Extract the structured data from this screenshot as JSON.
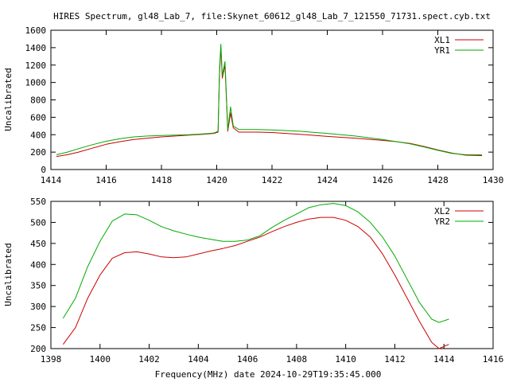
{
  "title": "HIRES Spectrum, gl48_Lab_7, file:Skynet_60612_gl48_Lab_7_121550_71731.spect.cyb.txt",
  "chart_data": [
    {
      "type": "line",
      "ylabel": "Uncalibrated",
      "xlabel": "",
      "xlim": [
        1414,
        1430
      ],
      "ylim": [
        0,
        1600
      ],
      "xticks": [
        "1414",
        "1416",
        "1418",
        "1420",
        "1422",
        "1424",
        "1426",
        "1428",
        "1430"
      ],
      "yticks": [
        "0",
        "200",
        "400",
        "600",
        "800",
        "1000",
        "1200",
        "1400",
        "1600"
      ],
      "legend_position": "top-right",
      "series": [
        {
          "name": "XL1",
          "color": "#cc0000",
          "points": [
            [
              1414.2,
              150
            ],
            [
              1414.6,
              170
            ],
            [
              1415.0,
              200
            ],
            [
              1415.5,
              245
            ],
            [
              1416.0,
              290
            ],
            [
              1416.5,
              320
            ],
            [
              1417.0,
              345
            ],
            [
              1417.5,
              360
            ],
            [
              1418.0,
              375
            ],
            [
              1418.5,
              385
            ],
            [
              1419.0,
              395
            ],
            [
              1419.5,
              405
            ],
            [
              1419.9,
              415
            ],
            [
              1420.05,
              430
            ],
            [
              1420.1,
              1100
            ],
            [
              1420.15,
              1400
            ],
            [
              1420.2,
              1050
            ],
            [
              1420.3,
              1200
            ],
            [
              1420.4,
              440
            ],
            [
              1420.5,
              650
            ],
            [
              1420.6,
              480
            ],
            [
              1420.8,
              430
            ],
            [
              1421.5,
              430
            ],
            [
              1422.0,
              425
            ],
            [
              1423.0,
              405
            ],
            [
              1424.0,
              380
            ],
            [
              1425.0,
              360
            ],
            [
              1426.0,
              335
            ],
            [
              1426.5,
              320
            ],
            [
              1427.0,
              300
            ],
            [
              1427.5,
              265
            ],
            [
              1428.0,
              225
            ],
            [
              1428.5,
              190
            ],
            [
              1429.0,
              165
            ],
            [
              1429.6,
              160
            ]
          ]
        },
        {
          "name": "YR1",
          "color": "#00aa00",
          "points": [
            [
              1414.2,
              170
            ],
            [
              1414.6,
              200
            ],
            [
              1415.0,
              240
            ],
            [
              1415.5,
              285
            ],
            [
              1416.0,
              325
            ],
            [
              1416.5,
              355
            ],
            [
              1417.0,
              375
            ],
            [
              1417.5,
              385
            ],
            [
              1418.0,
              390
            ],
            [
              1418.5,
              395
            ],
            [
              1419.0,
              400
            ],
            [
              1419.5,
              410
            ],
            [
              1419.9,
              420
            ],
            [
              1420.05,
              440
            ],
            [
              1420.1,
              1150
            ],
            [
              1420.15,
              1440
            ],
            [
              1420.2,
              1080
            ],
            [
              1420.3,
              1240
            ],
            [
              1420.4,
              460
            ],
            [
              1420.5,
              720
            ],
            [
              1420.6,
              500
            ],
            [
              1420.8,
              460
            ],
            [
              1421.5,
              460
            ],
            [
              1422.0,
              455
            ],
            [
              1423.0,
              440
            ],
            [
              1424.0,
              415
            ],
            [
              1425.0,
              385
            ],
            [
              1426.0,
              345
            ],
            [
              1426.5,
              320
            ],
            [
              1427.0,
              295
            ],
            [
              1427.5,
              260
            ],
            [
              1428.0,
              220
            ],
            [
              1428.5,
              185
            ],
            [
              1429.0,
              170
            ],
            [
              1429.6,
              170
            ]
          ]
        }
      ]
    },
    {
      "type": "line",
      "ylabel": "Uncalibrated",
      "xlabel": "Frequency(MHz) date 2024-10-29T19:35:45.000",
      "xlim": [
        1398,
        1416
      ],
      "ylim": [
        200,
        550
      ],
      "xticks": [
        "1398",
        "1400",
        "1402",
        "1404",
        "1406",
        "1408",
        "1410",
        "1412",
        "1414",
        "1416"
      ],
      "yticks": [
        "200",
        "250",
        "300",
        "350",
        "400",
        "450",
        "500",
        "550"
      ],
      "legend_position": "top-right",
      "series": [
        {
          "name": "XL2",
          "color": "#cc0000",
          "points": [
            [
              1398.5,
              210
            ],
            [
              1399.0,
              250
            ],
            [
              1399.5,
              320
            ],
            [
              1400.0,
              375
            ],
            [
              1400.5,
              415
            ],
            [
              1401.0,
              428
            ],
            [
              1401.5,
              430
            ],
            [
              1402.0,
              425
            ],
            [
              1402.5,
              418
            ],
            [
              1403.0,
              416
            ],
            [
              1403.5,
              418
            ],
            [
              1404.0,
              425
            ],
            [
              1404.5,
              432
            ],
            [
              1405.0,
              438
            ],
            [
              1405.5,
              445
            ],
            [
              1406.0,
              455
            ],
            [
              1406.5,
              465
            ],
            [
              1407.0,
              478
            ],
            [
              1407.5,
              490
            ],
            [
              1408.0,
              500
            ],
            [
              1408.5,
              508
            ],
            [
              1409.0,
              512
            ],
            [
              1409.5,
              512
            ],
            [
              1410.0,
              505
            ],
            [
              1410.5,
              490
            ],
            [
              1411.0,
              465
            ],
            [
              1411.5,
              425
            ],
            [
              1412.0,
              375
            ],
            [
              1412.5,
              320
            ],
            [
              1413.0,
              265
            ],
            [
              1413.5,
              215
            ],
            [
              1413.8,
              200
            ],
            [
              1414.2,
              210
            ]
          ]
        },
        {
          "name": "YR2",
          "color": "#00aa00",
          "points": [
            [
              1398.5,
              272
            ],
            [
              1399.0,
              320
            ],
            [
              1399.5,
              395
            ],
            [
              1400.0,
              455
            ],
            [
              1400.5,
              503
            ],
            [
              1401.0,
              520
            ],
            [
              1401.5,
              518
            ],
            [
              1402.0,
              505
            ],
            [
              1402.5,
              490
            ],
            [
              1403.0,
              480
            ],
            [
              1403.5,
              472
            ],
            [
              1404.0,
              465
            ],
            [
              1404.5,
              460
            ],
            [
              1405.0,
              455
            ],
            [
              1405.5,
              455
            ],
            [
              1406.0,
              458
            ],
            [
              1406.5,
              468
            ],
            [
              1407.0,
              488
            ],
            [
              1407.5,
              505
            ],
            [
              1408.0,
              520
            ],
            [
              1408.5,
              535
            ],
            [
              1409.0,
              542
            ],
            [
              1409.5,
              545
            ],
            [
              1410.0,
              540
            ],
            [
              1410.5,
              525
            ],
            [
              1411.0,
              500
            ],
            [
              1411.5,
              465
            ],
            [
              1412.0,
              420
            ],
            [
              1412.5,
              365
            ],
            [
              1413.0,
              310
            ],
            [
              1413.5,
              270
            ],
            [
              1413.8,
              262
            ],
            [
              1414.2,
              270
            ]
          ]
        }
      ]
    }
  ]
}
